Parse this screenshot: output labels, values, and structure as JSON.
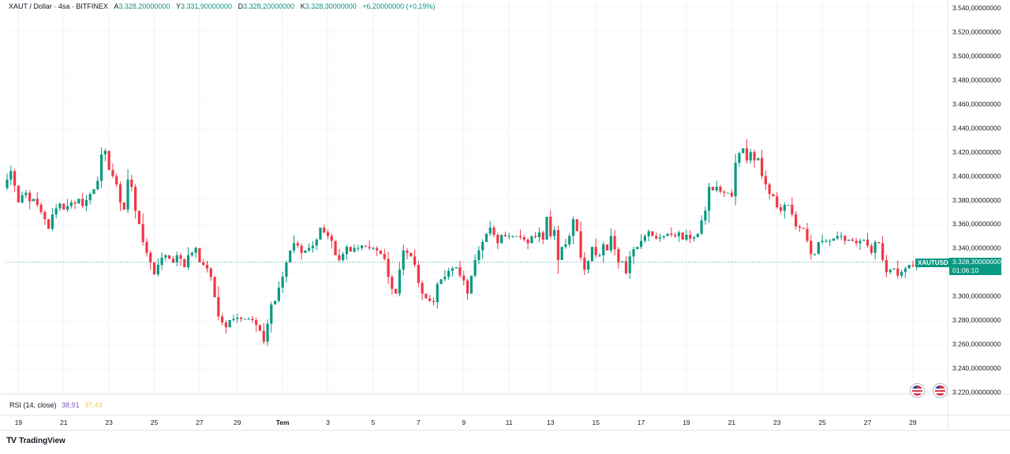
{
  "header": {
    "symbol_line": "XAUT / Dollar · 4sa · BITFINEX",
    "open_label": "A",
    "open_value": "3.328,20000000",
    "high_label": "Y",
    "high_value": "3.331,90000000",
    "low_label": "D",
    "low_value": "3.328,20000000",
    "close_label": "K",
    "close_value": "3.328,30000000",
    "change": "+6,20000000 (+0,19%)"
  },
  "rsi": {
    "label": "RSI (14, close)",
    "value1": "38,91",
    "value2": "37,43"
  },
  "price_tag": {
    "symbol": "XAUTUSD",
    "price": "3.328,30000000",
    "countdown": "01:06:10"
  },
  "brand": {
    "name": "TradingView",
    "logo": "TV"
  },
  "colors": {
    "up": "#089981",
    "down": "#f23645",
    "grid": "#f0f3fa",
    "axis_text": "#131722",
    "price_line": "#089981"
  },
  "chart_data": {
    "type": "candlestick",
    "title": "XAUT / Dollar · 4sa · BITFINEX",
    "ylim": [
      3210,
      3545
    ],
    "y_ticks": [
      3220,
      3240,
      3260,
      3280,
      3300,
      3320,
      3340,
      3360,
      3380,
      3400,
      3420,
      3440,
      3460,
      3480,
      3500,
      3520,
      3540
    ],
    "y_tick_labels": [
      "3.220,00000000",
      "3.240,00000000",
      "3.260,00000000",
      "3.280,00000000",
      "3.300,00000000",
      "3.320,00000000",
      "3.340,00000000",
      "3.360,00000000",
      "3.380,00000000",
      "3.400,00000000",
      "3.420,00000000",
      "3.440,00000000",
      "3.460,00000000",
      "3.480,00000000",
      "3.500,00000000",
      "3.520,00000000",
      "3.540,00000000"
    ],
    "x_tick_labels": [
      "19",
      "21",
      "23",
      "25",
      "27",
      "29",
      "Tem",
      "3",
      "5",
      "7",
      "9",
      "11",
      "13",
      "15",
      "17",
      "19",
      "21",
      "23",
      "25",
      "27",
      "29"
    ],
    "x_tick_bar_index": [
      3,
      15,
      27,
      39,
      51,
      61,
      73,
      85,
      97,
      109,
      121,
      133,
      144,
      156,
      168,
      180,
      192,
      204,
      216,
      228,
      240
    ],
    "last_price": 3328.3,
    "closes": [
      3390,
      3397,
      3404,
      3392,
      3378,
      3384,
      3386,
      3379,
      3381,
      3376,
      3370,
      3364,
      3356,
      3368,
      3373,
      3377,
      3372,
      3375,
      3378,
      3377,
      3381,
      3375,
      3380,
      3385,
      3389,
      3396,
      3418,
      3421,
      3405,
      3400,
      3393,
      3378,
      3372,
      3397,
      3391,
      3371,
      3360,
      3345,
      3336,
      3328,
      3318,
      3326,
      3332,
      3334,
      3331,
      3328,
      3334,
      3331,
      3324,
      3334,
      3336,
      3340,
      3328,
      3326,
      3323,
      3316,
      3299,
      3283,
      3278,
      3274,
      3280,
      3281,
      3282,
      3281,
      3281,
      3281,
      3280,
      3276,
      3271,
      3262,
      3277,
      3293,
      3296,
      3307,
      3316,
      3328,
      3338,
      3344,
      3342,
      3336,
      3338,
      3340,
      3342,
      3347,
      3357,
      3353,
      3350,
      3346,
      3334,
      3330,
      3335,
      3341,
      3337,
      3340,
      3340,
      3342,
      3341,
      3340,
      3340,
      3338,
      3335,
      3331,
      3316,
      3306,
      3302,
      3322,
      3338,
      3336,
      3333,
      3326,
      3311,
      3302,
      3298,
      3296,
      3295,
      3310,
      3314,
      3316,
      3321,
      3323,
      3324,
      3317,
      3313,
      3302,
      3317,
      3330,
      3338,
      3345,
      3352,
      3357,
      3351,
      3344,
      3351,
      3350,
      3350,
      3350,
      3350,
      3349,
      3347,
      3344,
      3350,
      3349,
      3353,
      3347,
      3366,
      3350,
      3355,
      3330,
      3341,
      3343,
      3350,
      3364,
      3354,
      3332,
      3322,
      3329,
      3341,
      3334,
      3334,
      3343,
      3338,
      3350,
      3339,
      3328,
      3329,
      3319,
      3333,
      3339,
      3341,
      3346,
      3350,
      3354,
      3350,
      3348,
      3349,
      3350,
      3352,
      3351,
      3350,
      3353,
      3347,
      3351,
      3348,
      3349,
      3352,
      3363,
      3371,
      3391,
      3388,
      3391,
      3387,
      3386,
      3386,
      3383,
      3411,
      3419,
      3423,
      3413,
      3420,
      3413,
      3415,
      3400,
      3393,
      3385,
      3383,
      3374,
      3371,
      3376,
      3376,
      3368,
      3358,
      3357,
      3356,
      3346,
      3335,
      3335,
      3345,
      3346,
      3346,
      3346,
      3348,
      3350,
      3350,
      3346,
      3347,
      3346,
      3344,
      3346,
      3347,
      3342,
      3336,
      3345,
      3344,
      3330,
      3320,
      3322,
      3323,
      3317,
      3320,
      3323,
      3326,
      3325,
      3327,
      3328.3
    ]
  }
}
